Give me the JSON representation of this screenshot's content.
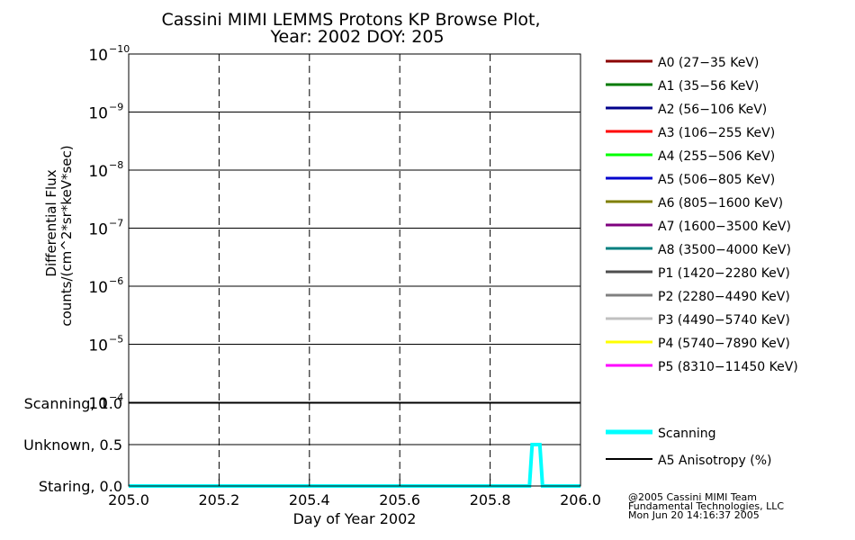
{
  "chart_data": [
    {
      "type": "line",
      "title": "Cassini MIMI LEMMS Protons KP Browse Plot,",
      "subtitle": "Year: 2002 DOY: 205",
      "ylabel_line1": "Differential Flux",
      "ylabel_line2": "counts/(cm^2*sr*keV*sec)",
      "y_scale": "log",
      "ylim": [
        -4,
        -10
      ],
      "xlim": [
        205.0,
        206.0
      ],
      "x_gridlines": [
        205.2,
        205.4,
        205.6,
        205.8
      ],
      "y_gridlines": [
        -9,
        -8,
        -7,
        -6,
        -5
      ],
      "y_ticks": [
        {
          "value": -10,
          "mantissa": "10",
          "exponent": "−10"
        },
        {
          "value": -9,
          "mantissa": "10",
          "exponent": "−9"
        },
        {
          "value": -8,
          "mantissa": "10",
          "exponent": "−8"
        },
        {
          "value": -7,
          "mantissa": "10",
          "exponent": "−7"
        },
        {
          "value": -6,
          "mantissa": "10",
          "exponent": "−6"
        },
        {
          "value": -5,
          "mantissa": "10",
          "exponent": "−5"
        },
        {
          "value": -4,
          "mantissa": "10",
          "exponent": "−4"
        }
      ],
      "series": [
        {
          "name": "A0 (27−35 KeV)",
          "color": "#8b0000",
          "values": []
        },
        {
          "name": "A1 (35−56 KeV)",
          "color": "#007a00",
          "values": []
        },
        {
          "name": "A2 (56−106 KeV)",
          "color": "#00008b",
          "values": []
        },
        {
          "name": "A3 (106−255 KeV)",
          "color": "#ff0000",
          "values": []
        },
        {
          "name": "A4 (255−506 KeV)",
          "color": "#00ff00",
          "values": []
        },
        {
          "name": "A5 (506−805 KeV)",
          "color": "#0000cd",
          "values": []
        },
        {
          "name": "A6 (805−1600 KeV)",
          "color": "#7f7f00",
          "values": []
        },
        {
          "name": "A7 (1600−3500 KeV)",
          "color": "#7f007f",
          "values": []
        },
        {
          "name": "A8 (3500−4000 KeV)",
          "color": "#007f7f",
          "values": []
        },
        {
          "name": "P1 (1420−2280 KeV)",
          "color": "#4d4d4d",
          "values": []
        },
        {
          "name": "P2 (2280−4490 KeV)",
          "color": "#808080",
          "values": []
        },
        {
          "name": "P3 (4490−5740 KeV)",
          "color": "#c0c0c0",
          "values": []
        },
        {
          "name": "P4 (5740−7890 KeV)",
          "color": "#ffff00",
          "values": []
        },
        {
          "name": "P5 (8310−11450 KeV)",
          "color": "#ff00ff",
          "values": []
        }
      ]
    },
    {
      "type": "line",
      "xlabel": "Day of Year 2002",
      "xlim": [
        205.0,
        206.0
      ],
      "ylim": [
        0.0,
        1.0
      ],
      "x_ticks": [
        "205.0",
        "205.2",
        "205.4",
        "205.6",
        "205.8",
        "206.0"
      ],
      "x_tick_values": [
        205.0,
        205.2,
        205.4,
        205.6,
        205.8,
        206.0
      ],
      "x_gridlines": [
        205.2,
        205.4,
        205.6,
        205.8
      ],
      "y_gridlines": [
        0.5
      ],
      "y_ticks": [
        {
          "value": 1.0,
          "label": "Scanning, 1.0"
        },
        {
          "value": 0.5,
          "label": "Unknown, 0.5"
        },
        {
          "value": 0.0,
          "label": "Staring, 0.0"
        }
      ],
      "series": [
        {
          "name": "Scanning",
          "color": "#00ffff",
          "x": [
            205.0,
            205.887,
            205.893,
            205.91,
            205.916,
            206.0
          ],
          "y": [
            0.0,
            0.0,
            0.5,
            0.5,
            0.0,
            0.0
          ]
        },
        {
          "name": "A5 Anisotropy (%)",
          "color": "#000000",
          "x": [],
          "y": []
        }
      ]
    }
  ],
  "footer": {
    "line1": "@2005 Cassini MIMI Team",
    "line2": "Fundamental Technologies, LLC",
    "line3": "Mon Jun 20 14:16:37 2005"
  }
}
